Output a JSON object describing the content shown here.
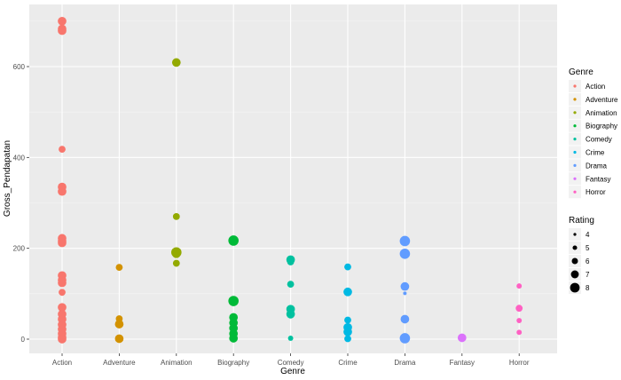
{
  "chart_data": {
    "type": "scatter",
    "title": "",
    "xlabel": "Genre",
    "ylabel": "Gross_Pendapatan",
    "categories": [
      "Action",
      "Adventure",
      "Animation",
      "Biography",
      "Comedy",
      "Crime",
      "Drama",
      "Fantasy",
      "Horror"
    ],
    "y_ticks": [
      0,
      200,
      400,
      600
    ],
    "ylim": [
      -35,
      735
    ],
    "grid": true,
    "colors": {
      "Action": "#F8766D",
      "Adventure": "#D39200",
      "Animation": "#93AA00",
      "Biography": "#00BA38",
      "Comedy": "#00C19F",
      "Crime": "#00B9E3",
      "Drama": "#619CFF",
      "Fantasy": "#DB72FB",
      "Horror": "#FF61C3"
    },
    "series": [
      {
        "name": "Action",
        "points": [
          {
            "y": 700,
            "rating": 7
          },
          {
            "y": 683,
            "rating": 7
          },
          {
            "y": 679,
            "rating": 7
          },
          {
            "y": 418,
            "rating": 6
          },
          {
            "y": 335,
            "rating": 7
          },
          {
            "y": 325,
            "rating": 7
          },
          {
            "y": 222,
            "rating": 7
          },
          {
            "y": 216,
            "rating": 7
          },
          {
            "y": 212,
            "rating": 7
          },
          {
            "y": 140,
            "rating": 7
          },
          {
            "y": 130,
            "rating": 7
          },
          {
            "y": 124,
            "rating": 7
          },
          {
            "y": 103,
            "rating": 6
          },
          {
            "y": 70,
            "rating": 7
          },
          {
            "y": 55,
            "rating": 7
          },
          {
            "y": 44,
            "rating": 7
          },
          {
            "y": 32,
            "rating": 7
          },
          {
            "y": 22,
            "rating": 7
          },
          {
            "y": 12,
            "rating": 7
          },
          {
            "y": 4,
            "rating": 7
          },
          {
            "y": 0,
            "rating": 7
          }
        ]
      },
      {
        "name": "Adventure",
        "points": [
          {
            "y": 158,
            "rating": 6
          },
          {
            "y": 45,
            "rating": 6
          },
          {
            "y": 33,
            "rating": 7
          },
          {
            "y": 1,
            "rating": 7
          }
        ]
      },
      {
        "name": "Animation",
        "points": [
          {
            "y": 609,
            "rating": 7
          },
          {
            "y": 270,
            "rating": 6
          },
          {
            "y": 191,
            "rating": 8
          },
          {
            "y": 188,
            "rating": 7
          },
          {
            "y": 167,
            "rating": 6
          }
        ]
      },
      {
        "name": "Biography",
        "points": [
          {
            "y": 217,
            "rating": 8
          },
          {
            "y": 84,
            "rating": 8
          },
          {
            "y": 48,
            "rating": 7
          },
          {
            "y": 36,
            "rating": 7
          },
          {
            "y": 24,
            "rating": 7
          },
          {
            "y": 12,
            "rating": 7
          },
          {
            "y": 2,
            "rating": 7
          }
        ]
      },
      {
        "name": "Comedy",
        "points": [
          {
            "y": 175,
            "rating": 7
          },
          {
            "y": 170,
            "rating": 6
          },
          {
            "y": 121,
            "rating": 6
          },
          {
            "y": 66,
            "rating": 7
          },
          {
            "y": 55,
            "rating": 7
          },
          {
            "y": 2,
            "rating": 5
          }
        ]
      },
      {
        "name": "Crime",
        "points": [
          {
            "y": 159,
            "rating": 6
          },
          {
            "y": 104,
            "rating": 7
          },
          {
            "y": 42,
            "rating": 6
          },
          {
            "y": 26,
            "rating": 7
          },
          {
            "y": 16,
            "rating": 7
          },
          {
            "y": 1,
            "rating": 6
          }
        ]
      },
      {
        "name": "Drama",
        "points": [
          {
            "y": 216,
            "rating": 8
          },
          {
            "y": 188,
            "rating": 8
          },
          {
            "y": 116,
            "rating": 7
          },
          {
            "y": 101,
            "rating": 4
          },
          {
            "y": 44,
            "rating": 7
          },
          {
            "y": 2,
            "rating": 8
          }
        ]
      },
      {
        "name": "Fantasy",
        "points": [
          {
            "y": 3,
            "rating": 7
          }
        ]
      },
      {
        "name": "Horror",
        "points": [
          {
            "y": 117,
            "rating": 5
          },
          {
            "y": 68,
            "rating": 6
          },
          {
            "y": 41,
            "rating": 5
          },
          {
            "y": 15,
            "rating": 5
          }
        ]
      }
    ],
    "legend": {
      "placement": "right",
      "color_title": "Genre",
      "size_title": "Rating",
      "size_values": [
        "4",
        "5",
        "6",
        "7",
        "8"
      ]
    }
  }
}
